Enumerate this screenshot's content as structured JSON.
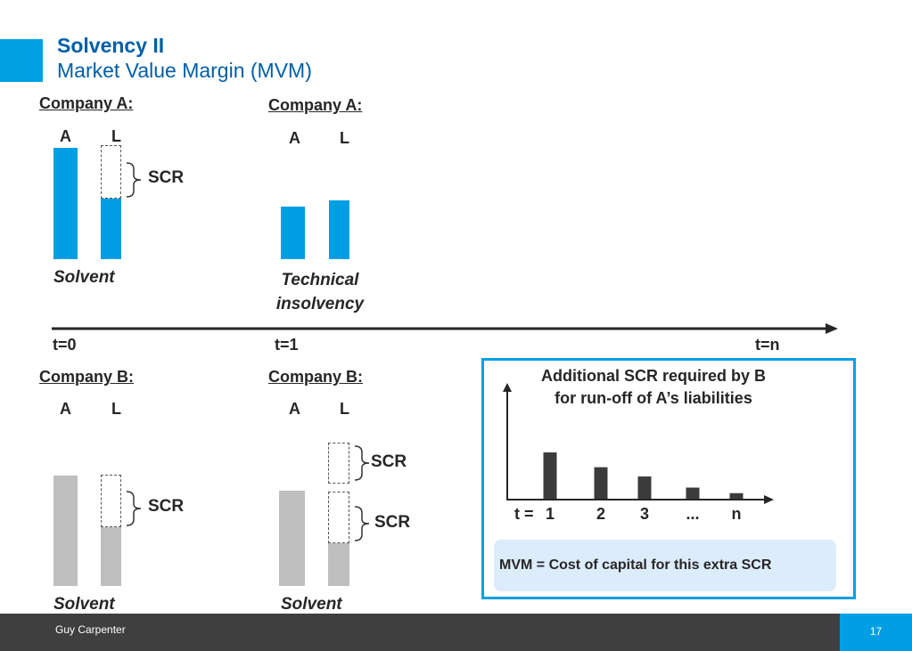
{
  "slide": {
    "title": "Solvency II",
    "subtitle": "Market Value Margin (MVM)"
  },
  "colors": {
    "brand_blue": "#009fe3",
    "title_blue": "#005fa8",
    "grey_bar": "#bfbfbf",
    "footer": "#3f3f3f"
  },
  "top": {
    "left_heading": "Company A:",
    "right_heading": "Company A:",
    "a_label": "A",
    "l_label": "L",
    "scr_label": "SCR",
    "left_status": "Solvent",
    "right_status_line1": "Technical",
    "right_status_line2": "insolvency"
  },
  "timeline": {
    "t0": "t=0",
    "t1": "t=1",
    "tn": "t=n"
  },
  "bottom": {
    "left_heading": "Company B:",
    "right_heading": "Company B:",
    "a_label": "A",
    "l_label": "L",
    "scr_label": "SCR",
    "left_status": "Solvent",
    "right_status": "Solvent"
  },
  "box": {
    "title_line1": "Additional SCR required by B",
    "title_line2": "for run-off of A’s liabilities",
    "t_prefix": "t =",
    "mvm_text": "MVM = Cost of capital for this extra SCR"
  },
  "chart_data": {
    "type": "bar",
    "categories": [
      "1",
      "2",
      "3",
      "...",
      "n"
    ],
    "values": [
      50,
      34,
      24,
      12,
      6
    ]
  },
  "footer": {
    "company": "Guy Carpenter",
    "page": "17"
  }
}
